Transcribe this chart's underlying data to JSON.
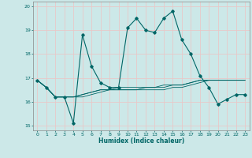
{
  "xlabel": "Humidex (Indice chaleur)",
  "bg_color": "#cce8e8",
  "grid_color": "#e8c8c8",
  "line_color": "#006666",
  "xlim": [
    -0.5,
    23.5
  ],
  "ylim": [
    14.8,
    20.2
  ],
  "yticks": [
    15,
    16,
    17,
    18,
    19,
    20
  ],
  "xticks": [
    0,
    1,
    2,
    3,
    4,
    5,
    6,
    7,
    8,
    9,
    10,
    11,
    12,
    13,
    14,
    15,
    16,
    17,
    18,
    19,
    20,
    21,
    22,
    23
  ],
  "series": [
    [
      16.9,
      16.6,
      16.2,
      16.2,
      15.1,
      18.8,
      17.5,
      16.8,
      16.6,
      16.6,
      19.1,
      19.5,
      19.0,
      18.9,
      19.5,
      19.8,
      18.6,
      18.0,
      17.1,
      16.6,
      15.9,
      16.1,
      16.3,
      16.3
    ],
    [
      16.9,
      16.6,
      16.2,
      16.2,
      16.2,
      16.2,
      16.3,
      16.4,
      16.5,
      16.5,
      16.5,
      16.5,
      16.6,
      16.6,
      16.6,
      16.7,
      16.7,
      16.8,
      16.9,
      16.9,
      16.9,
      16.9,
      16.9,
      16.9
    ],
    [
      16.9,
      16.6,
      16.2,
      16.2,
      16.2,
      16.3,
      16.4,
      16.5,
      16.5,
      16.5,
      16.5,
      16.5,
      16.5,
      16.5,
      16.5,
      16.6,
      16.6,
      16.7,
      16.8,
      16.9,
      16.9,
      16.9,
      16.9,
      16.9
    ],
    [
      16.9,
      16.6,
      16.2,
      16.2,
      16.2,
      16.3,
      16.4,
      16.5,
      16.5,
      16.6,
      16.6,
      16.6,
      16.6,
      16.6,
      16.7,
      16.7,
      16.7,
      16.8,
      16.9,
      16.9,
      16.9,
      16.9,
      16.9,
      16.9
    ]
  ]
}
